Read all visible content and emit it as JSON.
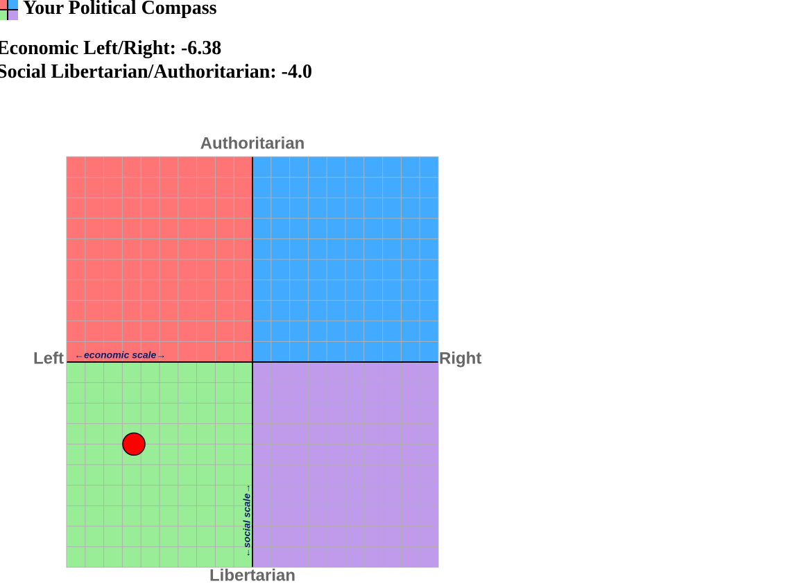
{
  "header": {
    "title": "Your Political Compass"
  },
  "scores": [
    {
      "label": "Economic Left/Right:",
      "value": -6.38
    },
    {
      "label": "Social Libertarian/Authoritarian:",
      "value": -4,
      "value_label": "-4.0"
    }
  ],
  "chart_data": {
    "type": "scatter",
    "y_label_top": "Authoritarian",
    "y_label_bottom": "Libertarian",
    "x_label_left": "Left",
    "x_label_right": "Right",
    "x_scale_label": "←economic scale→",
    "y_scale_label": "←social scale→",
    "xlim": [
      -10,
      10
    ],
    "ylim": [
      -10,
      10
    ],
    "xticks": [
      -10,
      -9,
      -8,
      -7,
      -6,
      -5,
      -4,
      -3,
      -2,
      -1,
      0,
      1,
      2,
      3,
      4,
      5,
      6,
      7,
      8,
      9,
      10
    ],
    "yticks": [
      -10,
      -9,
      -8,
      -7,
      -6,
      -5,
      -4,
      -3,
      -2,
      -1,
      0,
      1,
      2,
      3,
      4,
      5,
      6,
      7,
      8,
      9,
      10
    ],
    "grid": true,
    "quadrant_colors": [
      "#ff7575",
      "#42aaff",
      "#9aed97",
      "#c09aeb"
    ],
    "point_color": "#ff0000"
  }
}
